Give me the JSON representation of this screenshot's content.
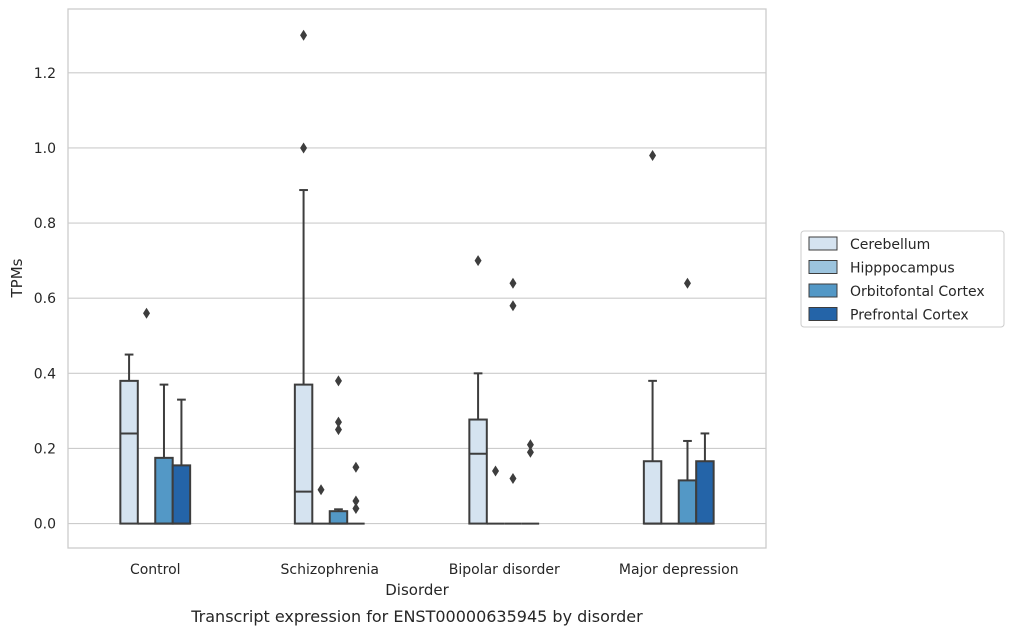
{
  "chart_data": {
    "type": "box",
    "title": "",
    "caption": "Transcript expression for ENST00000635945 by disorder",
    "xlabel": "Disorder",
    "ylabel": "TPMs",
    "ylim": [
      -0.065,
      1.37
    ],
    "yticks": [
      0.0,
      0.2,
      0.4,
      0.6,
      0.8,
      1.0,
      1.2
    ],
    "ytick_labels": [
      "0.0",
      "0.2",
      "0.4",
      "0.6",
      "0.8",
      "1.0",
      "1.2"
    ],
    "grid": "horizontal",
    "legend_position": "right",
    "categories": [
      "Control",
      "Schizophrenia",
      "Bipolar disorder",
      "Major depression"
    ],
    "series": [
      {
        "name": "Cerebellum",
        "color": "#d5e3f0",
        "boxes": [
          {
            "whislo": 0.0,
            "q1": 0.0,
            "med": 0.24,
            "q3": 0.38,
            "whishi": 0.45,
            "fliers": []
          },
          {
            "whislo": 0.0,
            "q1": 0.0,
            "med": 0.085,
            "q3": 0.37,
            "whishi": 0.888,
            "fliers": [
              1.0,
              1.3
            ]
          },
          {
            "whislo": 0.0,
            "q1": 0.0,
            "med": 0.186,
            "q3": 0.277,
            "whishi": 0.4,
            "fliers": [
              0.7
            ]
          },
          {
            "whislo": 0.0,
            "q1": 0.0,
            "med": 0.0,
            "q3": 0.166,
            "whishi": 0.38,
            "fliers": [
              0.98
            ]
          }
        ]
      },
      {
        "name": "Hipppocampus",
        "color": "#9cc4de",
        "boxes": [
          {
            "whislo": 0.0,
            "q1": 0.0,
            "med": 0.0,
            "q3": 0.0,
            "whishi": 0.0,
            "fliers": [
              0.56
            ]
          },
          {
            "whislo": 0.0,
            "q1": 0.0,
            "med": 0.0,
            "q3": 0.0,
            "whishi": 0.0,
            "fliers": [
              0.09
            ]
          },
          {
            "whislo": 0.0,
            "q1": 0.0,
            "med": 0.0,
            "q3": 0.0,
            "whishi": 0.0,
            "fliers": [
              0.14
            ]
          },
          {
            "whislo": 0.0,
            "q1": 0.0,
            "med": 0.0,
            "q3": 0.0,
            "whishi": 0.0,
            "fliers": []
          }
        ]
      },
      {
        "name": "Orbitofontal Cortex",
        "color": "#5398c6",
        "boxes": [
          {
            "whislo": 0.0,
            "q1": 0.0,
            "med": 0.0,
            "q3": 0.175,
            "whishi": 0.37,
            "fliers": []
          },
          {
            "whislo": 0.0,
            "q1": 0.0,
            "med": 0.0,
            "q3": 0.033,
            "whishi": 0.038,
            "fliers": [
              0.25,
              0.27,
              0.38
            ]
          },
          {
            "whislo": 0.0,
            "q1": 0.0,
            "med": 0.0,
            "q3": 0.0,
            "whishi": 0.0,
            "fliers": [
              0.12,
              0.58,
              0.64
            ]
          },
          {
            "whislo": 0.0,
            "q1": 0.0,
            "med": 0.0,
            "q3": 0.115,
            "whishi": 0.22,
            "fliers": [
              0.64
            ]
          }
        ]
      },
      {
        "name": "Prefrontal Cortex",
        "color": "#2464a8",
        "boxes": [
          {
            "whislo": 0.0,
            "q1": 0.0,
            "med": 0.0,
            "q3": 0.155,
            "whishi": 0.33,
            "fliers": []
          },
          {
            "whislo": 0.0,
            "q1": 0.0,
            "med": 0.0,
            "q3": 0.0,
            "whishi": 0.0,
            "fliers": [
              0.04,
              0.06,
              0.15
            ]
          },
          {
            "whislo": 0.0,
            "q1": 0.0,
            "med": 0.0,
            "q3": 0.0,
            "whishi": 0.0,
            "fliers": [
              0.19,
              0.21
            ]
          },
          {
            "whislo": 0.0,
            "q1": 0.0,
            "med": 0.0,
            "q3": 0.166,
            "whishi": 0.24,
            "fliers": []
          }
        ]
      }
    ]
  }
}
